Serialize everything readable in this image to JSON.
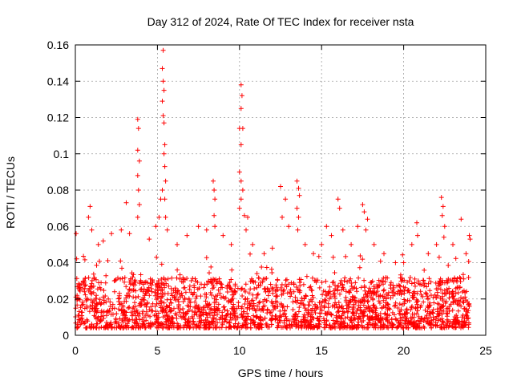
{
  "chart_data": {
    "type": "scatter",
    "title": "Day 312 of 2024, Rate Of TEC Index for receiver nsta",
    "xlabel": "GPS time / hours",
    "ylabel": "ROTI / TECUs",
    "xlim": [
      0,
      25
    ],
    "ylim": [
      0,
      0.16
    ],
    "xticks": [
      0,
      5,
      10,
      15,
      20,
      25
    ],
    "yticks": [
      0,
      0.02,
      0.04,
      0.06,
      0.08,
      0.1,
      0.12,
      0.14,
      0.16
    ],
    "grid": true,
    "marker": "+",
    "marker_color": "#ff0000",
    "series": [
      {
        "name": "ROTI",
        "points": [
          [
            0.05,
            0.056
          ],
          [
            0.8,
            0.065
          ],
          [
            0.9,
            0.071
          ],
          [
            1.0,
            0.058
          ],
          [
            1.4,
            0.05
          ],
          [
            1.7,
            0.052
          ],
          [
            2.2,
            0.056
          ],
          [
            2.8,
            0.058
          ],
          [
            3.1,
            0.073
          ],
          [
            3.3,
            0.056
          ],
          [
            3.8,
            0.119
          ],
          [
            3.85,
            0.114
          ],
          [
            3.8,
            0.102
          ],
          [
            3.9,
            0.096
          ],
          [
            3.8,
            0.088
          ],
          [
            3.85,
            0.08
          ],
          [
            3.9,
            0.072
          ],
          [
            3.8,
            0.065
          ],
          [
            4.5,
            0.053
          ],
          [
            4.9,
            0.06
          ],
          [
            5.1,
            0.065
          ],
          [
            5.2,
            0.075
          ],
          [
            5.3,
            0.08
          ],
          [
            5.35,
            0.157
          ],
          [
            5.3,
            0.147
          ],
          [
            5.35,
            0.14
          ],
          [
            5.4,
            0.135
          ],
          [
            5.3,
            0.129
          ],
          [
            5.35,
            0.121
          ],
          [
            5.4,
            0.117
          ],
          [
            5.45,
            0.105
          ],
          [
            5.4,
            0.1
          ],
          [
            5.45,
            0.093
          ],
          [
            5.5,
            0.085
          ],
          [
            5.45,
            0.075
          ],
          [
            5.5,
            0.065
          ],
          [
            5.6,
            0.058
          ],
          [
            6.2,
            0.05
          ],
          [
            6.8,
            0.055
          ],
          [
            7.5,
            0.06
          ],
          [
            8.0,
            0.058
          ],
          [
            8.4,
            0.085
          ],
          [
            8.45,
            0.08
          ],
          [
            8.5,
            0.075
          ],
          [
            8.45,
            0.066
          ],
          [
            8.5,
            0.06
          ],
          [
            9.0,
            0.055
          ],
          [
            9.5,
            0.05
          ],
          [
            10.0,
            0.114
          ],
          [
            10.1,
            0.138
          ],
          [
            10.15,
            0.132
          ],
          [
            10.1,
            0.125
          ],
          [
            10.2,
            0.114
          ],
          [
            10.1,
            0.105
          ],
          [
            10.0,
            0.09
          ],
          [
            10.1,
            0.085
          ],
          [
            10.2,
            0.08
          ],
          [
            10.1,
            0.075
          ],
          [
            10.0,
            0.07
          ],
          [
            10.3,
            0.066
          ],
          [
            10.5,
            0.065
          ],
          [
            10.4,
            0.058
          ],
          [
            10.8,
            0.05
          ],
          [
            11.5,
            0.045
          ],
          [
            12.0,
            0.048
          ],
          [
            12.5,
            0.082
          ],
          [
            12.6,
            0.065
          ],
          [
            12.8,
            0.075
          ],
          [
            13.0,
            0.06
          ],
          [
            13.5,
            0.085
          ],
          [
            13.6,
            0.081
          ],
          [
            13.65,
            0.077
          ],
          [
            13.5,
            0.07
          ],
          [
            13.6,
            0.065
          ],
          [
            13.55,
            0.058
          ],
          [
            14.0,
            0.05
          ],
          [
            14.5,
            0.045
          ],
          [
            15.0,
            0.05
          ],
          [
            15.3,
            0.06
          ],
          [
            15.6,
            0.055
          ],
          [
            16.0,
            0.075
          ],
          [
            16.1,
            0.07
          ],
          [
            16.3,
            0.058
          ],
          [
            16.8,
            0.05
          ],
          [
            17.2,
            0.06
          ],
          [
            17.5,
            0.072
          ],
          [
            17.6,
            0.068
          ],
          [
            17.8,
            0.064
          ],
          [
            17.7,
            0.058
          ],
          [
            18.2,
            0.05
          ],
          [
            18.8,
            0.045
          ],
          [
            19.5,
            0.04
          ],
          [
            20.0,
            0.04
          ],
          [
            20.5,
            0.05
          ],
          [
            20.8,
            0.062
          ],
          [
            20.85,
            0.055
          ],
          [
            21.5,
            0.045
          ],
          [
            22.0,
            0.05
          ],
          [
            22.3,
            0.076
          ],
          [
            22.4,
            0.071
          ],
          [
            22.35,
            0.066
          ],
          [
            22.5,
            0.06
          ],
          [
            22.45,
            0.054
          ],
          [
            23.0,
            0.05
          ],
          [
            23.5,
            0.064
          ],
          [
            23.8,
            0.045
          ],
          [
            24.0,
            0.055
          ],
          [
            24.05,
            0.053
          ]
        ],
        "baseline_band": {
          "lower": 0.004,
          "dense_upper": 0.032,
          "sparse_upper": 0.045,
          "x_range": [
            0,
            24
          ]
        }
      }
    ]
  }
}
